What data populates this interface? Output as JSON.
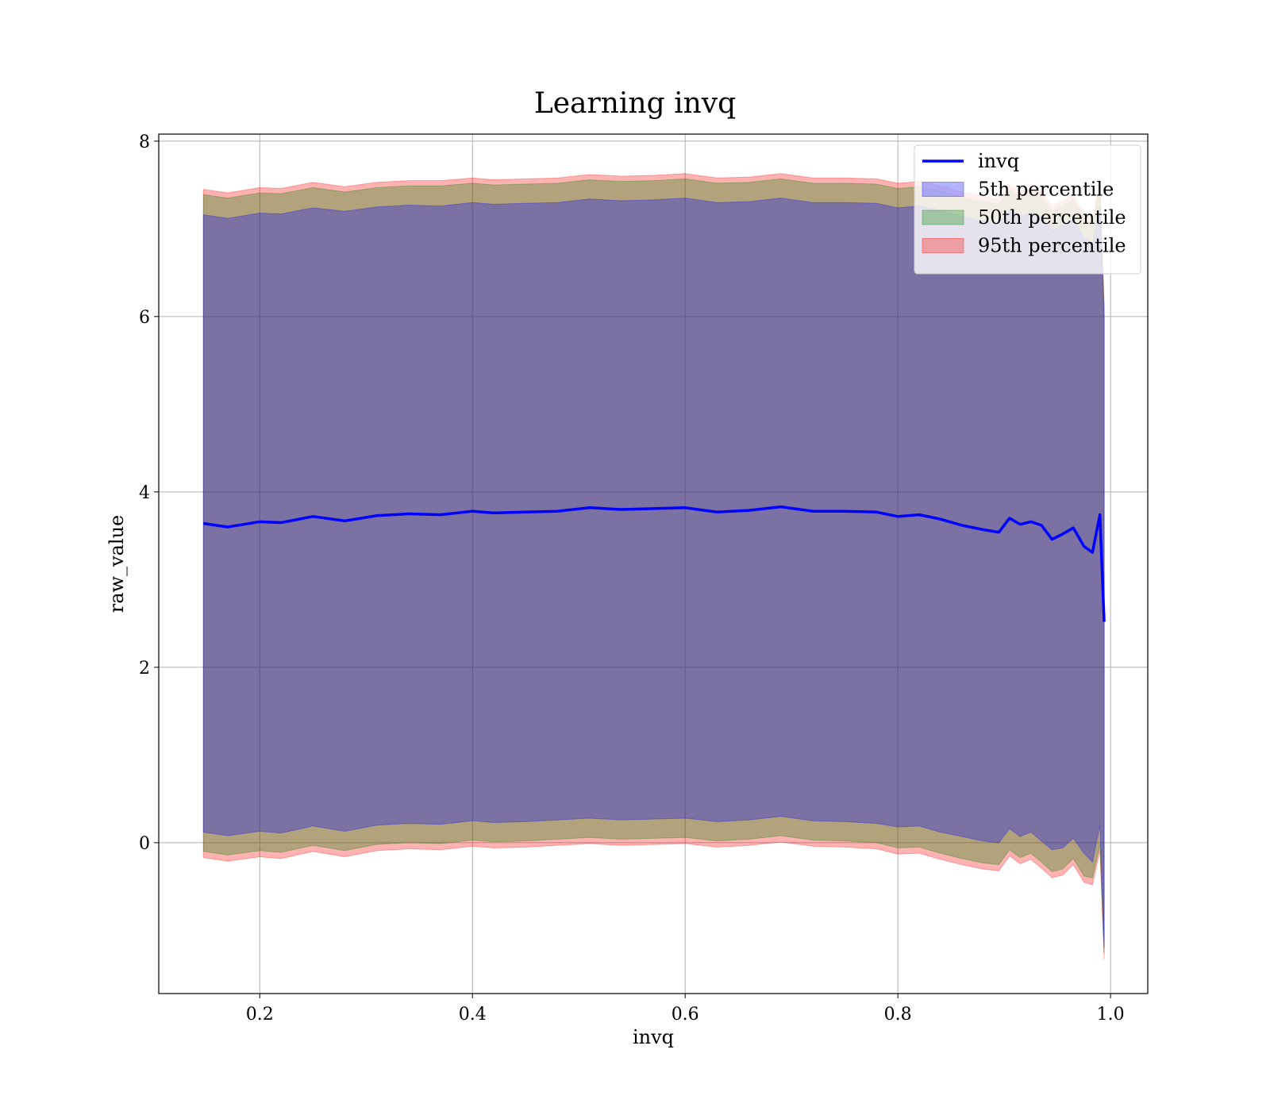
{
  "chart_data": {
    "type": "area",
    "title": "Learning invq",
    "xlabel": "invq",
    "ylabel": "raw_value",
    "xlim": [
      0.105,
      1.035
    ],
    "ylim": [
      -1.72,
      8.08
    ],
    "xticks": [
      0.2,
      0.4,
      0.6,
      0.8,
      1.0
    ],
    "xtick_labels": [
      "0.2",
      "0.4",
      "0.6",
      "0.8",
      "1.0"
    ],
    "yticks": [
      0,
      2,
      4,
      6,
      8
    ],
    "ytick_labels": [
      "0",
      "2",
      "4",
      "6",
      "8"
    ],
    "grid": true,
    "legend_position": "upper right",
    "x": [
      0.147,
      0.17,
      0.2,
      0.22,
      0.25,
      0.28,
      0.31,
      0.34,
      0.37,
      0.4,
      0.42,
      0.45,
      0.48,
      0.51,
      0.54,
      0.57,
      0.6,
      0.63,
      0.66,
      0.69,
      0.72,
      0.75,
      0.78,
      0.8,
      0.82,
      0.84,
      0.86,
      0.88,
      0.895,
      0.905,
      0.915,
      0.925,
      0.935,
      0.945,
      0.955,
      0.965,
      0.975,
      0.983,
      0.99,
      0.994
    ],
    "series": [
      {
        "name": "invq",
        "kind": "line",
        "color": "#0000ff",
        "values": [
          3.64,
          3.6,
          3.66,
          3.65,
          3.72,
          3.67,
          3.73,
          3.75,
          3.74,
          3.78,
          3.76,
          3.77,
          3.78,
          3.82,
          3.8,
          3.81,
          3.82,
          3.77,
          3.79,
          3.83,
          3.78,
          3.78,
          3.77,
          3.72,
          3.74,
          3.69,
          3.62,
          3.57,
          3.54,
          3.7,
          3.63,
          3.66,
          3.62,
          3.46,
          3.52,
          3.59,
          3.38,
          3.31,
          3.74,
          2.52
        ]
      },
      {
        "name": "5th percentile",
        "kind": "band",
        "color": "#0000ff",
        "lower": [
          0.12,
          0.08,
          0.13,
          0.11,
          0.19,
          0.13,
          0.2,
          0.22,
          0.21,
          0.25,
          0.23,
          0.24,
          0.26,
          0.28,
          0.26,
          0.27,
          0.28,
          0.24,
          0.26,
          0.3,
          0.25,
          0.24,
          0.22,
          0.18,
          0.19,
          0.12,
          0.07,
          0.02,
          0.0,
          0.16,
          0.07,
          0.12,
          0.02,
          -0.08,
          -0.06,
          0.05,
          -0.12,
          -0.22,
          0.2,
          -1.2
        ],
        "upper": [
          7.16,
          7.12,
          7.18,
          7.17,
          7.24,
          7.2,
          7.25,
          7.27,
          7.26,
          7.3,
          7.28,
          7.29,
          7.3,
          7.34,
          7.32,
          7.33,
          7.35,
          7.3,
          7.31,
          7.35,
          7.3,
          7.3,
          7.29,
          7.24,
          7.26,
          7.21,
          7.14,
          7.09,
          7.06,
          7.22,
          7.15,
          7.18,
          7.14,
          6.98,
          7.04,
          7.11,
          6.9,
          6.83,
          7.26,
          6.0
        ]
      },
      {
        "name": "50th percentile",
        "kind": "band",
        "color": "#008000",
        "lower": [
          -0.1,
          -0.14,
          -0.09,
          -0.11,
          -0.03,
          -0.09,
          -0.02,
          0.0,
          -0.01,
          0.03,
          0.01,
          0.02,
          0.04,
          0.06,
          0.04,
          0.05,
          0.06,
          0.02,
          0.04,
          0.08,
          0.03,
          0.02,
          0.0,
          -0.06,
          -0.05,
          -0.12,
          -0.18,
          -0.23,
          -0.25,
          -0.08,
          -0.17,
          -0.12,
          -0.22,
          -0.33,
          -0.3,
          -0.18,
          -0.38,
          -0.4,
          -0.02,
          -1.26
        ],
        "upper": [
          7.39,
          7.35,
          7.41,
          7.4,
          7.47,
          7.42,
          7.47,
          7.49,
          7.49,
          7.52,
          7.5,
          7.51,
          7.52,
          7.56,
          7.54,
          7.55,
          7.57,
          7.52,
          7.53,
          7.57,
          7.52,
          7.52,
          7.51,
          7.46,
          7.48,
          7.43,
          7.36,
          7.31,
          7.28,
          7.44,
          7.37,
          7.4,
          7.36,
          7.2,
          7.26,
          7.33,
          7.12,
          7.05,
          7.48,
          6.1
        ]
      },
      {
        "name": "95th percentile",
        "kind": "band",
        "color": "#ff0000",
        "lower": [
          -0.17,
          -0.21,
          -0.16,
          -0.18,
          -0.1,
          -0.16,
          -0.09,
          -0.07,
          -0.08,
          -0.04,
          -0.06,
          -0.05,
          -0.03,
          -0.01,
          -0.03,
          -0.02,
          -0.01,
          -0.05,
          -0.03,
          0.01,
          -0.04,
          -0.05,
          -0.07,
          -0.13,
          -0.12,
          -0.19,
          -0.25,
          -0.3,
          -0.32,
          -0.15,
          -0.24,
          -0.19,
          -0.29,
          -0.4,
          -0.37,
          -0.25,
          -0.45,
          -0.48,
          -0.09,
          -1.33
        ],
        "upper": [
          7.45,
          7.41,
          7.47,
          7.46,
          7.53,
          7.48,
          7.53,
          7.55,
          7.55,
          7.58,
          7.56,
          7.57,
          7.58,
          7.62,
          7.6,
          7.61,
          7.63,
          7.58,
          7.59,
          7.63,
          7.58,
          7.58,
          7.57,
          7.52,
          7.54,
          7.49,
          7.42,
          7.37,
          7.34,
          7.5,
          7.43,
          7.46,
          7.42,
          7.26,
          7.32,
          7.39,
          7.18,
          7.11,
          7.54,
          6.15
        ]
      }
    ]
  }
}
